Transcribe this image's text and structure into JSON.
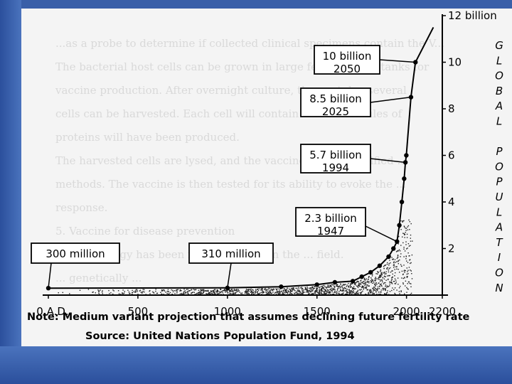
{
  "background_text": [
    "...as a probe to determine if collected clinical specimens contain the V...",
    "The bacterial host cells can be grown in large fermentation tanks for",
    "vaccine production. After overnight culture, the next day several",
    "cells can be harvested. Each cell will contain some molecules of",
    "proteins will have been produced.",
    "The harvested cells are lysed, and the vaccine protein purified ...",
    "methods. The vaccine is then tested for its ability to evoke the ...",
    "response.",
    "5.      Vaccine for disease prevention",
    "Biotechnology has been more effective in the ... field.",
    "... genetically ..."
  ],
  "chart_data": {
    "type": "line",
    "title": "",
    "ylabel_letters": [
      "G",
      "L",
      "O",
      "B",
      "A",
      "L",
      "",
      "P",
      "O",
      "P",
      "U",
      "L",
      "A",
      "T",
      "I",
      "O",
      "N"
    ],
    "x_ticks": [
      {
        "v": 0,
        "label": "0 A.D."
      },
      {
        "v": 500,
        "label": "500"
      },
      {
        "v": 1000,
        "label": "1000"
      },
      {
        "v": 1500,
        "label": "1500"
      },
      {
        "v": 2000,
        "label": "2000"
      },
      {
        "v": 2200,
        "label": "2200"
      }
    ],
    "y_ticks": [
      {
        "v": 2,
        "label": "2"
      },
      {
        "v": 4,
        "label": "4"
      },
      {
        "v": 6,
        "label": "6"
      },
      {
        "v": 8,
        "label": "8"
      },
      {
        "v": 10,
        "label": "10"
      },
      {
        "v": 12,
        "label": "12 billion"
      }
    ],
    "xlim": [
      0,
      2200
    ],
    "ylim": [
      0,
      12
    ],
    "series": [
      {
        "x": [
          0,
          1000,
          1300,
          1500,
          1600,
          1700,
          1750,
          1800,
          1850,
          1900,
          1927,
          1947,
          1960,
          1974,
          1987,
          1994,
          1999,
          2025,
          2050,
          2150
        ],
        "y": [
          0.3,
          0.31,
          0.36,
          0.45,
          0.55,
          0.6,
          0.79,
          0.98,
          1.26,
          1.65,
          2.0,
          2.3,
          3.0,
          4.0,
          5.0,
          5.7,
          6.0,
          8.5,
          10.0,
          11.5
        ]
      }
    ],
    "annotations": [
      {
        "lines": [
          "300 million"
        ],
        "x": 0,
        "y": 0.3
      },
      {
        "lines": [
          "310 million"
        ],
        "x": 1000,
        "y": 0.31
      },
      {
        "lines": [
          "2.3 billion",
          "1947"
        ],
        "x": 1947,
        "y": 2.3
      },
      {
        "lines": [
          "5.7 billion",
          "1994"
        ],
        "x": 1994,
        "y": 5.7
      },
      {
        "lines": [
          "8.5 billion",
          "2025"
        ],
        "x": 2025,
        "y": 8.5
      },
      {
        "lines": [
          "10 billion",
          "2050"
        ],
        "x": 2050,
        "y": 10.0
      }
    ],
    "note": "Note: Medium variant projection that assumes declining future fertility rate",
    "source": "Source: United Nations Population Fund, 1994"
  }
}
